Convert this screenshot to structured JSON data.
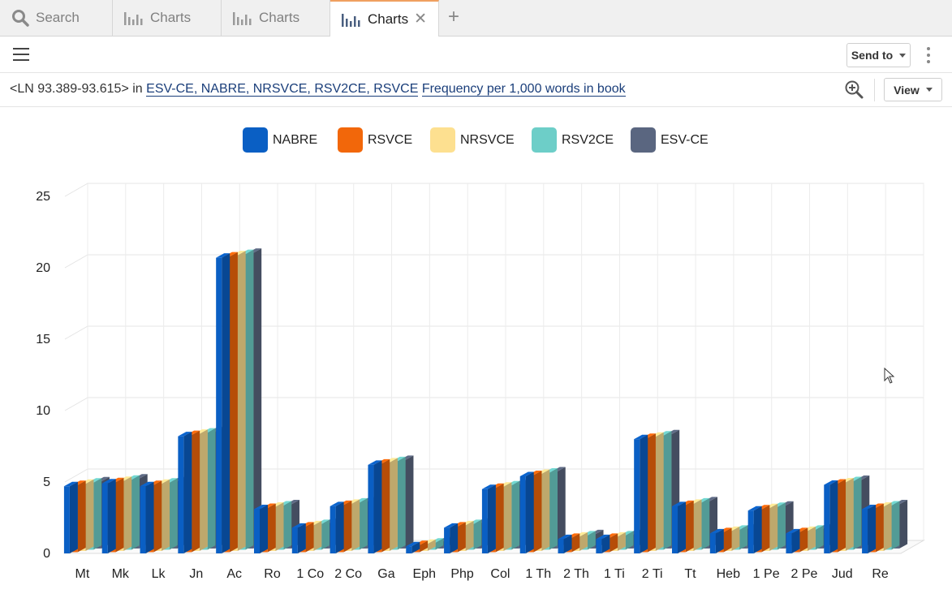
{
  "tabs": [
    {
      "label": "Search",
      "icon": "search-icon"
    },
    {
      "label": "Charts",
      "icon": "bar-chart-icon"
    },
    {
      "label": "Charts",
      "icon": "bar-chart-icon"
    },
    {
      "label": "Charts",
      "icon": "bar-chart-icon",
      "active": true,
      "close": "✕"
    }
  ],
  "new_tab": "+",
  "toolbar": {
    "send_to": "Send to",
    "view": "View"
  },
  "query": {
    "prefix": "<LN 93.389-93.615>",
    "in": "in",
    "versions": "ESV-CE, NABRE, NRSVCE, RSV2CE, RSVCE",
    "measure": "Frequency per 1,000 words in book"
  },
  "colors": {
    "NABRE": "#0a5fc4",
    "RSVCE": "#f2670a",
    "NRSVCE": "#fde090",
    "RSV2CE": "#6dcec8",
    "ESV-CE": "#5a6680"
  },
  "chart_data": {
    "type": "bar",
    "categories": [
      "Mt",
      "Mk",
      "Lk",
      "Jn",
      "Ac",
      "Ro",
      "1 Co",
      "2 Co",
      "Ga",
      "Eph",
      "Php",
      "Col",
      "1 Th",
      "2 Th",
      "1 Ti",
      "2 Ti",
      "Tt",
      "Heb",
      "1 Pe",
      "2 Pe",
      "Jud",
      "Re"
    ],
    "series": [
      {
        "name": "NABRE",
        "values": [
          4.7,
          4.9,
          4.7,
          8.2,
          20.7,
          3.1,
          1.8,
          3.3,
          6.2,
          0.5,
          1.8,
          4.5,
          5.4,
          1.0,
          1.0,
          8.0,
          3.3,
          1.4,
          3.0,
          1.4,
          4.8,
          3.1
        ]
      },
      {
        "name": "RSVCE",
        "values": [
          4.7,
          4.9,
          4.7,
          8.2,
          20.7,
          3.1,
          1.8,
          3.3,
          6.2,
          0.5,
          1.8,
          4.5,
          5.4,
          1.0,
          1.0,
          8.0,
          3.3,
          1.4,
          3.0,
          1.4,
          4.8,
          3.1
        ]
      },
      {
        "name": "NRSVCE",
        "values": [
          4.7,
          4.9,
          4.7,
          8.2,
          20.7,
          3.1,
          1.8,
          3.3,
          6.2,
          0.5,
          1.8,
          4.5,
          5.4,
          1.0,
          1.0,
          8.0,
          3.3,
          1.4,
          3.0,
          1.4,
          4.8,
          3.1
        ]
      },
      {
        "name": "RSV2CE",
        "values": [
          4.7,
          4.9,
          4.7,
          8.2,
          20.7,
          3.1,
          1.8,
          3.3,
          6.2,
          0.5,
          1.8,
          4.5,
          5.4,
          1.0,
          1.0,
          8.0,
          3.3,
          1.4,
          3.0,
          1.4,
          4.8,
          3.1
        ]
      },
      {
        "name": "ESV-CE",
        "values": [
          4.7,
          4.9,
          4.7,
          8.2,
          20.7,
          3.1,
          1.8,
          3.3,
          6.2,
          0.5,
          1.8,
          4.5,
          5.4,
          1.0,
          1.0,
          8.0,
          3.3,
          1.4,
          3.0,
          1.4,
          4.8,
          3.1
        ]
      }
    ],
    "yticks": [
      "0",
      "5",
      "10",
      "15",
      "20",
      "25"
    ],
    "ylim": [
      0,
      25
    ],
    "grid": true,
    "legend_position": "top"
  }
}
